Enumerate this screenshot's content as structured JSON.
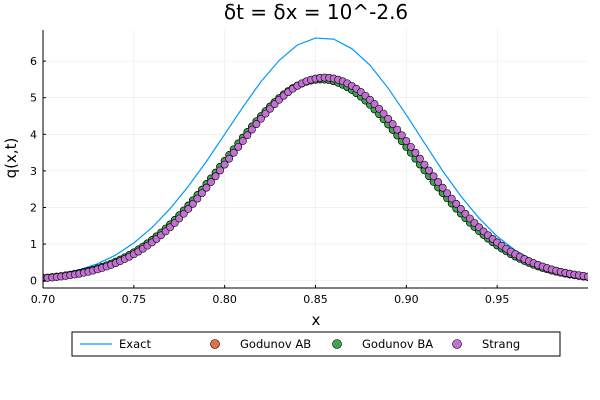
{
  "chart_data": {
    "type": "line",
    "title": "δt = δx = 10^-2.6",
    "xlabel": "x",
    "ylabel": "q(x,t)",
    "xlim": [
      0.7,
      1.0
    ],
    "ylim": [
      -0.2,
      6.85
    ],
    "xticks": [
      0.7,
      0.75,
      0.8,
      0.85,
      0.9,
      0.95
    ],
    "xtick_labels": [
      "0.70",
      "0.75",
      "0.80",
      "0.85",
      "0.90",
      "0.95"
    ],
    "yticks": [
      0,
      1,
      2,
      3,
      4,
      5,
      6
    ],
    "ytick_labels": [
      "0",
      "1",
      "2",
      "3",
      "4",
      "5",
      "6"
    ],
    "grid": true,
    "legend_position": "bottom",
    "series": [
      {
        "name": "Exact",
        "kind": "line",
        "color": "#009AFA",
        "x": [
          0.7,
          0.71,
          0.72,
          0.73,
          0.74,
          0.75,
          0.76,
          0.77,
          0.78,
          0.79,
          0.8,
          0.81,
          0.82,
          0.83,
          0.84,
          0.85,
          0.86,
          0.87,
          0.88,
          0.89,
          0.9,
          0.91,
          0.92,
          0.93,
          0.94,
          0.95,
          0.96,
          0.97,
          0.98,
          0.99,
          1.0
        ],
        "y": [
          0.11,
          0.19,
          0.3,
          0.46,
          0.7,
          1.03,
          1.45,
          1.97,
          2.58,
          3.26,
          4.0,
          4.74,
          5.44,
          6.02,
          6.44,
          6.63,
          6.6,
          6.34,
          5.89,
          5.26,
          4.53,
          3.76,
          3.0,
          2.31,
          1.71,
          1.21,
          0.83,
          0.55,
          0.35,
          0.21,
          0.12
        ]
      },
      {
        "name": "Godunov AB",
        "kind": "scatter",
        "color": "#E26F46",
        "x0": 0.7,
        "dx": 0.0025,
        "center": 0.853,
        "sigma": 0.052,
        "amplitude": 5.5
      },
      {
        "name": "Godunov BA",
        "kind": "scatter",
        "color": "#3EA44E",
        "x0": 0.7,
        "dx": 0.0025,
        "center": 0.853,
        "sigma": 0.052,
        "amplitude": 5.5
      },
      {
        "name": "Strang",
        "kind": "scatter",
        "color": "#C271D2",
        "x0": 0.7,
        "dx": 0.0025,
        "center": 0.855,
        "sigma": 0.052,
        "amplitude": 5.55
      }
    ]
  }
}
